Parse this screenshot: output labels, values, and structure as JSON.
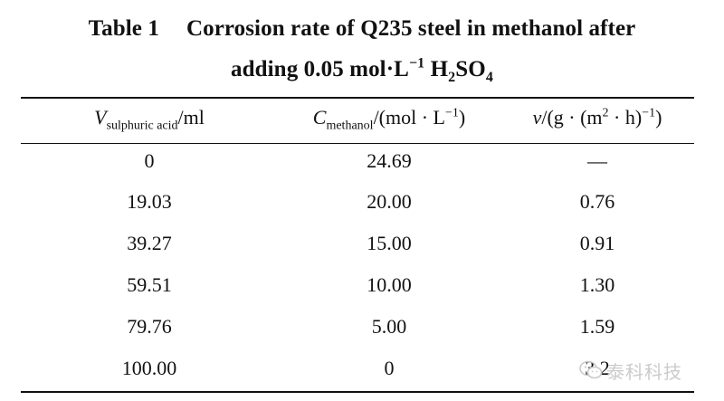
{
  "caption": {
    "label": "Table 1",
    "title_line1": "Corrosion rate of Q235 steel in methanol after",
    "title_line2_prefix": "adding 0.05 mol",
    "title_line2_dot": "·",
    "title_line2_unit": "L",
    "title_line2_exp": "−1",
    "title_line2_formula_h": "H",
    "title_line2_formula_h_sub": "2",
    "title_line2_formula_so": "SO",
    "title_line2_formula_so_sub": "4"
  },
  "table": {
    "headers": [
      {
        "symbol": "V",
        "subscript": "sulphuric acid",
        "unit": "/ml"
      },
      {
        "symbol": "C",
        "subscript": "methanol",
        "unit": "/(mol · L",
        "unit_exp": "−1",
        "unit_end": ")"
      },
      {
        "symbol": "v",
        "unit": "/(g · (m",
        "unit_exp2": "2",
        "unit_mid": " · h)",
        "unit_exp": "−1",
        "unit_end": ")"
      }
    ],
    "rows": [
      [
        "0",
        "24.69",
        "—"
      ],
      [
        "19.03",
        "20.00",
        "0.76"
      ],
      [
        "39.27",
        "15.00",
        "0.91"
      ],
      [
        "59.51",
        "10.00",
        "1.30"
      ],
      [
        "79.76",
        "5.00",
        "1.59"
      ],
      [
        "100.00",
        "0",
        "3.2"
      ]
    ]
  },
  "watermark": {
    "text": "泰科科技",
    "icon": "wechat-icon",
    "color": "#c9c9c9"
  }
}
